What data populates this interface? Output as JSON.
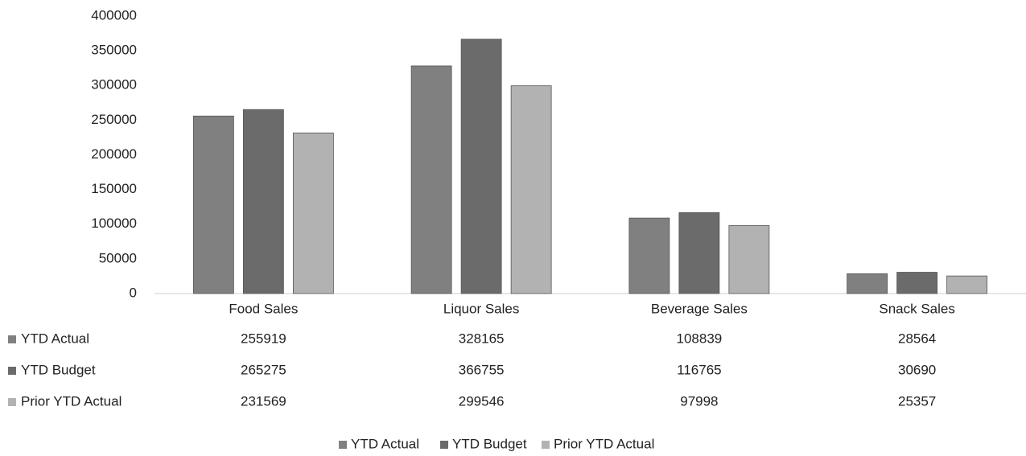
{
  "chart_data": {
    "type": "bar",
    "categories": [
      "Food Sales",
      "Liquor Sales",
      "Beverage Sales",
      "Snack Sales"
    ],
    "series": [
      {
        "name": "YTD Actual",
        "color": "#808080",
        "values": [
          255919,
          328165,
          108839,
          28564
        ]
      },
      {
        "name": "YTD Budget",
        "color": "#6b6b6b",
        "values": [
          265275,
          366755,
          116765,
          30690
        ]
      },
      {
        "name": "Prior YTD Actual",
        "color": "#b2b2b2",
        "values": [
          231569,
          299546,
          97998,
          25357
        ]
      }
    ],
    "ylim": [
      0,
      400000
    ],
    "yticks": [
      0,
      50000,
      100000,
      150000,
      200000,
      250000,
      300000,
      350000,
      400000
    ],
    "grid": false,
    "legend": "bottom"
  }
}
